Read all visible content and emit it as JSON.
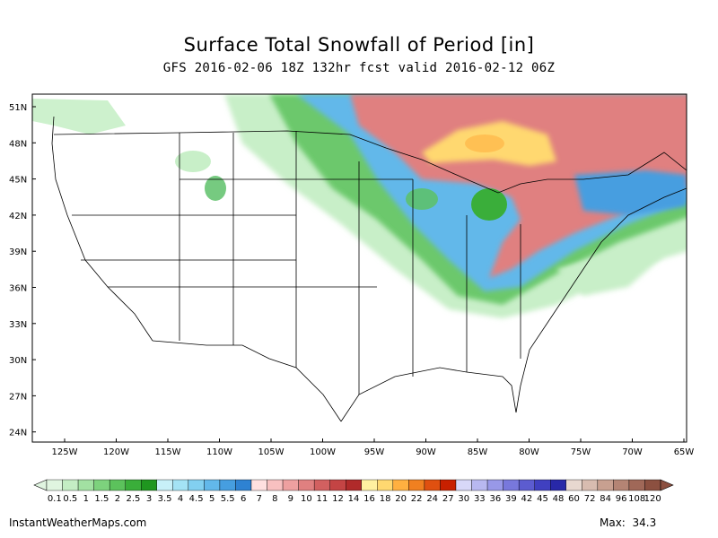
{
  "title": "Surface Total Snowfall of Period [in]",
  "subtitle": "GFS 2016-02-06 18Z 132hr fcst valid 2016-02-12 06Z",
  "lat_labels": [
    "51N",
    "48N",
    "45N",
    "42N",
    "39N",
    "36N",
    "33N",
    "30N",
    "27N",
    "24N"
  ],
  "lon_labels": [
    "125W",
    "120W",
    "115W",
    "110W",
    "105W",
    "100W",
    "95W",
    "90W",
    "85W",
    "80W",
    "75W",
    "70W",
    "65W"
  ],
  "legend": {
    "labels": [
      "0.1",
      "0.5",
      "1",
      "1.5",
      "2",
      "2.5",
      "3",
      "3.5",
      "4",
      "4.5",
      "5",
      "5.5",
      "6",
      "7",
      "8",
      "9",
      "10",
      "11",
      "12",
      "14",
      "16",
      "18",
      "20",
      "22",
      "24",
      "27",
      "30",
      "33",
      "36",
      "39",
      "42",
      "45",
      "48",
      "60",
      "72",
      "84",
      "96",
      "108",
      "120"
    ],
    "colors": [
      "#e0f5e0",
      "#c4edc4",
      "#a2e1a2",
      "#7dd27d",
      "#5cc25c",
      "#3aae3a",
      "#1f961f",
      "#c8f0f8",
      "#a4e3f5",
      "#82d0f0",
      "#62b8ea",
      "#469ee0",
      "#2e82d2",
      "#ffe0e0",
      "#f8c0c0",
      "#eea0a0",
      "#e08080",
      "#d26060",
      "#c44444",
      "#b02a2a",
      "#fff0a0",
      "#ffd870",
      "#ffb040",
      "#f08020",
      "#e05010",
      "#c82000",
      "#d8d8f8",
      "#b8b8f0",
      "#9898e8",
      "#7878dc",
      "#5c5cd0",
      "#4040c0",
      "#2828a8",
      "#e8d8d0",
      "#d8bcb0",
      "#c8a090",
      "#b48474",
      "#a06858",
      "#8c5040"
    ]
  },
  "footer": {
    "site": "InstantWeatherMaps.com",
    "max_label": "Max:",
    "max_value": "34.3"
  },
  "map_style": {
    "green": "#3cb44a",
    "blue": "#4a8ef0",
    "pink": "#e07878",
    "yellow": "#ffd84a"
  }
}
